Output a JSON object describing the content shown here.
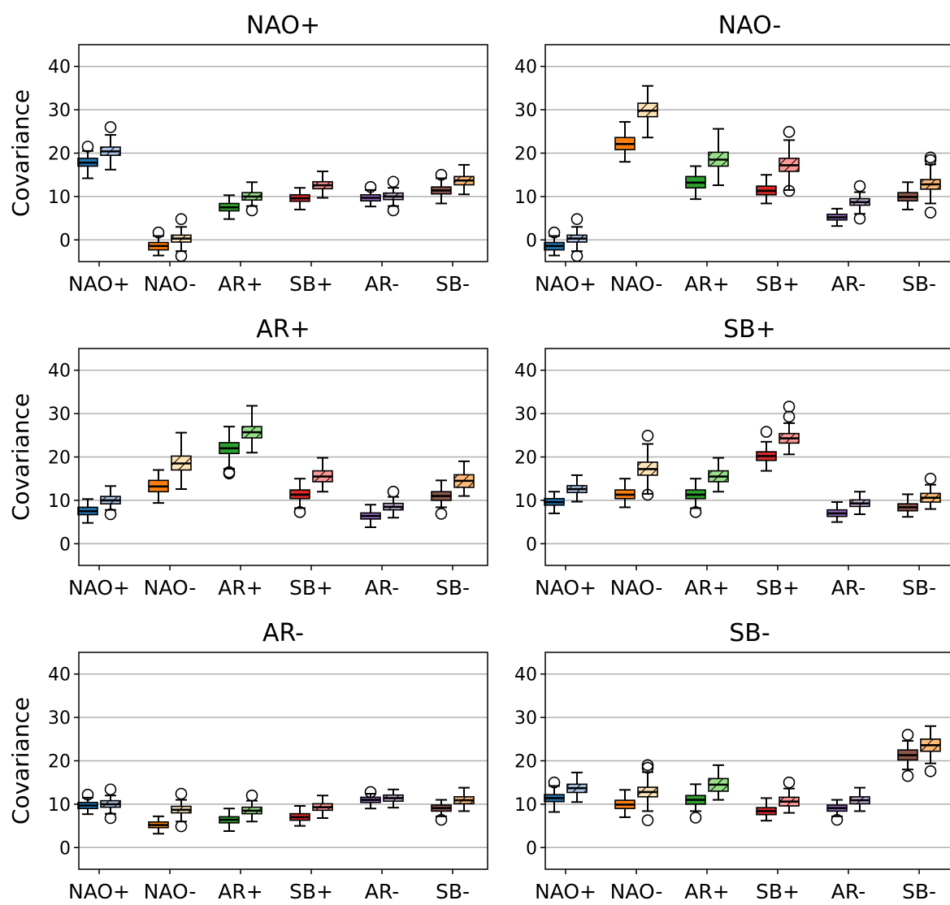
{
  "chart_data": {
    "type": "box",
    "ylabel": "Covariance",
    "ylim": [
      -5,
      45
    ],
    "yticks": [
      0,
      10,
      20,
      30,
      40
    ],
    "grid": "y",
    "categories": [
      "NAO+",
      "NAO-",
      "AR+",
      "SB+",
      "AR-",
      "SB-"
    ],
    "colors": {
      "NAO+": [
        "#1f77b4",
        "#aec7e8"
      ],
      "NAO-": [
        "#ff7f0e",
        "#ffe4b5"
      ],
      "AR+": [
        "#2ca02c",
        "#98df8a"
      ],
      "SB+": [
        "#d62728",
        "#ff9896"
      ],
      "AR-": [
        "#9467bd",
        "#c5b0d5"
      ],
      "SB-": [
        "#8c564b",
        "#ffbb78"
      ]
    },
    "panels": [
      {
        "title": "NAO+",
        "pairs": [
          [
            {
              "q1": 17,
              "med": 17.8,
              "q3": 18.8,
              "lo": 14.2,
              "hi": 20.5,
              "fliers": [
                21.5
              ]
            },
            {
              "q1": 19.5,
              "med": 20.4,
              "q3": 21.4,
              "lo": 16.2,
              "hi": 24.2,
              "fliers": [
                26
              ]
            }
          ],
          [
            {
              "q1": -2.3,
              "med": -1.4,
              "q3": -0.6,
              "lo": -3.6,
              "hi": 0.9,
              "fliers": [
                1.7
              ]
            },
            {
              "q1": -0.5,
              "med": 0.3,
              "q3": 1.1,
              "lo": -2.6,
              "hi": 3.0,
              "fliers": [
                4.8,
                -3.7
              ]
            }
          ],
          [
            {
              "q1": 6.7,
              "med": 7.5,
              "q3": 8.4,
              "lo": 4.8,
              "hi": 10.3,
              "fliers": []
            },
            {
              "q1": 9.2,
              "med": 10.0,
              "q3": 10.9,
              "lo": 7.8,
              "hi": 13.3,
              "fliers": [
                6.8
              ]
            }
          ],
          [
            {
              "q1": 8.9,
              "med": 9.6,
              "q3": 10.4,
              "lo": 7.0,
              "hi": 12.0,
              "fliers": []
            },
            {
              "q1": 11.8,
              "med": 12.6,
              "q3": 13.4,
              "lo": 9.7,
              "hi": 15.8,
              "fliers": []
            }
          ],
          [
            {
              "q1": 9.0,
              "med": 9.7,
              "q3": 10.4,
              "lo": 7.7,
              "hi": 11.5,
              "fliers": [
                12.2
              ]
            },
            {
              "q1": 9.3,
              "med": 10.0,
              "q3": 10.8,
              "lo": 7.8,
              "hi": 12.0,
              "fliers": [
                13.4,
                6.8
              ]
            }
          ],
          [
            {
              "q1": 10.6,
              "med": 11.4,
              "q3": 12.2,
              "lo": 8.4,
              "hi": 14.2,
              "fliers": [
                15.0
              ]
            },
            {
              "q1": 12.7,
              "med": 13.7,
              "q3": 14.6,
              "lo": 10.5,
              "hi": 17.3,
              "fliers": []
            }
          ]
        ]
      },
      {
        "title": "NAO-",
        "pairs": [
          [
            {
              "q1": -2.3,
              "med": -1.4,
              "q3": -0.6,
              "lo": -3.6,
              "hi": 0.9,
              "fliers": [
                1.7
              ]
            },
            {
              "q1": -0.5,
              "med": 0.3,
              "q3": 1.1,
              "lo": -2.6,
              "hi": 3.0,
              "fliers": [
                4.8,
                -3.7
              ]
            }
          ],
          [
            {
              "q1": 20.8,
              "med": 22.1,
              "q3": 23.6,
              "lo": 18.0,
              "hi": 27.2,
              "fliers": []
            },
            {
              "q1": 28.4,
              "med": 29.8,
              "q3": 31.5,
              "lo": 23.6,
              "hi": 35.5,
              "fliers": []
            }
          ],
          [
            {
              "q1": 12.0,
              "med": 13.2,
              "q3": 14.6,
              "lo": 9.4,
              "hi": 17.0,
              "fliers": []
            },
            {
              "q1": 17.0,
              "med": 18.5,
              "q3": 20.2,
              "lo": 12.6,
              "hi": 25.6,
              "fliers": []
            }
          ],
          [
            {
              "q1": 10.4,
              "med": 11.3,
              "q3": 12.4,
              "lo": 8.4,
              "hi": 15.0,
              "fliers": []
            },
            {
              "q1": 15.8,
              "med": 17.2,
              "q3": 18.8,
              "lo": 11.5,
              "hi": 23.0,
              "fliers": [
                24.9,
                11.3
              ]
            }
          ],
          [
            {
              "q1": 4.6,
              "med": 5.2,
              "q3": 5.9,
              "lo": 3.2,
              "hi": 7.2,
              "fliers": []
            },
            {
              "q1": 8.0,
              "med": 8.7,
              "q3": 9.5,
              "lo": 6.0,
              "hi": 11.0,
              "fliers": [
                12.4,
                4.9
              ]
            }
          ],
          [
            {
              "q1": 9.0,
              "med": 9.9,
              "q3": 10.9,
              "lo": 7.0,
              "hi": 13.3,
              "fliers": []
            },
            {
              "q1": 11.7,
              "med": 12.8,
              "q3": 13.9,
              "lo": 8.4,
              "hi": 17.4,
              "fliers": [
                19.0,
                18.4,
                6.3
              ]
            }
          ]
        ]
      },
      {
        "title": "AR+",
        "pairs": [
          [
            {
              "q1": 6.7,
              "med": 7.5,
              "q3": 8.4,
              "lo": 4.8,
              "hi": 10.3,
              "fliers": []
            },
            {
              "q1": 9.2,
              "med": 10.0,
              "q3": 10.9,
              "lo": 7.8,
              "hi": 13.3,
              "fliers": [
                6.8
              ]
            }
          ],
          [
            {
              "q1": 12.0,
              "med": 13.2,
              "q3": 14.6,
              "lo": 9.4,
              "hi": 17.0,
              "fliers": []
            },
            {
              "q1": 17.0,
              "med": 18.5,
              "q3": 20.2,
              "lo": 12.6,
              "hi": 25.6,
              "fliers": []
            }
          ],
          [
            {
              "q1": 20.8,
              "med": 22.0,
              "q3": 23.3,
              "lo": 17.3,
              "hi": 27.0,
              "fliers": [
                16.5,
                16.2
              ]
            },
            {
              "q1": 24.4,
              "med": 25.7,
              "q3": 27.0,
              "lo": 21.0,
              "hi": 31.8,
              "fliers": []
            }
          ],
          [
            {
              "q1": 10.4,
              "med": 11.3,
              "q3": 12.4,
              "lo": 8.2,
              "hi": 15.0,
              "fliers": [
                7.3
              ]
            },
            {
              "q1": 14.3,
              "med": 15.5,
              "q3": 16.8,
              "lo": 12.0,
              "hi": 19.8,
              "fliers": []
            }
          ],
          [
            {
              "q1": 5.7,
              "med": 6.4,
              "q3": 7.1,
              "lo": 3.8,
              "hi": 9.0,
              "fliers": []
            },
            {
              "q1": 7.8,
              "med": 8.5,
              "q3": 9.3,
              "lo": 6.0,
              "hi": 10.8,
              "fliers": [
                12.0
              ]
            }
          ],
          [
            {
              "q1": 10.0,
              "med": 11.0,
              "q3": 12.0,
              "lo": 8.4,
              "hi": 14.6,
              "fliers": [
                6.9
              ]
            },
            {
              "q1": 13.0,
              "med": 14.5,
              "q3": 15.9,
              "lo": 11.0,
              "hi": 19.0,
              "fliers": []
            }
          ]
        ]
      },
      {
        "title": "SB+",
        "pairs": [
          [
            {
              "q1": 8.9,
              "med": 9.6,
              "q3": 10.4,
              "lo": 7.0,
              "hi": 12.0,
              "fliers": []
            },
            {
              "q1": 11.8,
              "med": 12.6,
              "q3": 13.4,
              "lo": 9.7,
              "hi": 15.8,
              "fliers": []
            }
          ],
          [
            {
              "q1": 10.4,
              "med": 11.3,
              "q3": 12.4,
              "lo": 8.4,
              "hi": 15.0,
              "fliers": []
            },
            {
              "q1": 15.8,
              "med": 17.2,
              "q3": 18.8,
              "lo": 11.5,
              "hi": 23.0,
              "fliers": [
                24.9,
                11.3
              ]
            }
          ],
          [
            {
              "q1": 10.4,
              "med": 11.3,
              "q3": 12.4,
              "lo": 8.2,
              "hi": 15.0,
              "fliers": [
                7.3
              ]
            },
            {
              "q1": 14.3,
              "med": 15.5,
              "q3": 16.8,
              "lo": 12.0,
              "hi": 19.8,
              "fliers": []
            }
          ],
          [
            {
              "q1": 19.2,
              "med": 20.2,
              "q3": 21.2,
              "lo": 16.8,
              "hi": 23.5,
              "fliers": [
                25.8
              ]
            },
            {
              "q1": 23.2,
              "med": 24.3,
              "q3": 25.4,
              "lo": 20.6,
              "hi": 27.8,
              "fliers": [
                31.6,
                29.3
              ]
            }
          ],
          [
            {
              "q1": 6.3,
              "med": 7.0,
              "q3": 7.8,
              "lo": 5.0,
              "hi": 9.6,
              "fliers": []
            },
            {
              "q1": 8.6,
              "med": 9.3,
              "q3": 10.1,
              "lo": 6.8,
              "hi": 12.0,
              "fliers": []
            }
          ],
          [
            {
              "q1": 7.6,
              "med": 8.4,
              "q3": 9.2,
              "lo": 6.2,
              "hi": 11.4,
              "fliers": []
            },
            {
              "q1": 9.6,
              "med": 10.6,
              "q3": 11.6,
              "lo": 8.0,
              "hi": 13.6,
              "fliers": [
                15.0
              ]
            }
          ]
        ]
      },
      {
        "title": "AR-",
        "pairs": [
          [
            {
              "q1": 9.0,
              "med": 9.7,
              "q3": 10.4,
              "lo": 7.7,
              "hi": 11.5,
              "fliers": [
                12.2
              ]
            },
            {
              "q1": 9.3,
              "med": 10.0,
              "q3": 10.8,
              "lo": 7.8,
              "hi": 12.0,
              "fliers": [
                13.4,
                6.8
              ]
            }
          ],
          [
            {
              "q1": 4.6,
              "med": 5.2,
              "q3": 5.9,
              "lo": 3.2,
              "hi": 7.2,
              "fliers": []
            },
            {
              "q1": 8.0,
              "med": 8.7,
              "q3": 9.5,
              "lo": 6.0,
              "hi": 11.0,
              "fliers": [
                12.4,
                4.9
              ]
            }
          ],
          [
            {
              "q1": 5.7,
              "med": 6.4,
              "q3": 7.1,
              "lo": 3.8,
              "hi": 9.0,
              "fliers": []
            },
            {
              "q1": 7.8,
              "med": 8.5,
              "q3": 9.3,
              "lo": 6.0,
              "hi": 10.8,
              "fliers": [
                12.0
              ]
            }
          ],
          [
            {
              "q1": 6.3,
              "med": 7.0,
              "q3": 7.8,
              "lo": 5.0,
              "hi": 9.6,
              "fliers": []
            },
            {
              "q1": 8.6,
              "med": 9.3,
              "q3": 10.1,
              "lo": 6.8,
              "hi": 12.0,
              "fliers": []
            }
          ],
          [
            {
              "q1": 10.4,
              "med": 11.0,
              "q3": 11.6,
              "lo": 9.0,
              "hi": 12.4,
              "fliers": [
                12.8
              ]
            },
            {
              "q1": 10.7,
              "med": 11.4,
              "q3": 12.1,
              "lo": 9.2,
              "hi": 13.4,
              "fliers": []
            }
          ],
          [
            {
              "q1": 8.4,
              "med": 9.1,
              "q3": 9.8,
              "lo": 7.2,
              "hi": 11.0,
              "fliers": [
                6.4
              ]
            },
            {
              "q1": 10.1,
              "med": 10.9,
              "q3": 11.7,
              "lo": 8.4,
              "hi": 13.8,
              "fliers": []
            }
          ]
        ]
      },
      {
        "title": "SB-",
        "pairs": [
          [
            {
              "q1": 10.6,
              "med": 11.4,
              "q3": 12.2,
              "lo": 8.2,
              "hi": 14.2,
              "fliers": [
                15.0
              ]
            },
            {
              "q1": 12.7,
              "med": 13.7,
              "q3": 14.6,
              "lo": 10.5,
              "hi": 17.3,
              "fliers": []
            }
          ],
          [
            {
              "q1": 9.0,
              "med": 9.9,
              "q3": 10.9,
              "lo": 7.0,
              "hi": 13.3,
              "fliers": []
            },
            {
              "q1": 11.7,
              "med": 12.8,
              "q3": 13.9,
              "lo": 8.4,
              "hi": 17.4,
              "fliers": [
                19.0,
                18.4,
                6.3
              ]
            }
          ],
          [
            {
              "q1": 10.0,
              "med": 11.0,
              "q3": 12.0,
              "lo": 8.4,
              "hi": 14.6,
              "fliers": [
                6.9
              ]
            },
            {
              "q1": 13.0,
              "med": 14.5,
              "q3": 15.9,
              "lo": 11.0,
              "hi": 19.0,
              "fliers": []
            }
          ],
          [
            {
              "q1": 7.6,
              "med": 8.4,
              "q3": 9.2,
              "lo": 6.2,
              "hi": 11.4,
              "fliers": []
            },
            {
              "q1": 9.6,
              "med": 10.6,
              "q3": 11.6,
              "lo": 8.0,
              "hi": 13.6,
              "fliers": [
                15.0
              ]
            }
          ],
          [
            {
              "q1": 8.4,
              "med": 9.1,
              "q3": 9.8,
              "lo": 7.2,
              "hi": 11.0,
              "fliers": [
                6.4
              ]
            },
            {
              "q1": 10.1,
              "med": 10.9,
              "q3": 11.7,
              "lo": 8.4,
              "hi": 13.8,
              "fliers": []
            }
          ],
          [
            {
              "q1": 20.2,
              "med": 21.3,
              "q3": 22.5,
              "lo": 18.0,
              "hi": 24.6,
              "fliers": [
                26.0,
                16.5
              ]
            },
            {
              "q1": 22.2,
              "med": 23.6,
              "q3": 25.0,
              "lo": 19.4,
              "hi": 28.0,
              "fliers": [
                17.6
              ]
            }
          ]
        ]
      }
    ]
  }
}
